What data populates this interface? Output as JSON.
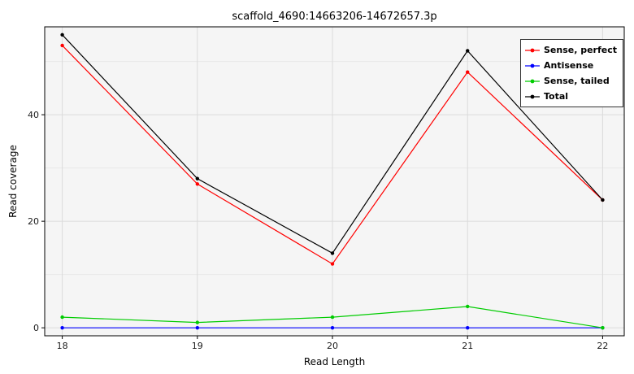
{
  "chart_data": {
    "type": "line",
    "title": "scaffold_4690:14663206-14672657.3p",
    "xlabel": "Read Length",
    "ylabel": "Read coverage",
    "x": [
      18,
      19,
      20,
      21,
      22
    ],
    "series": [
      {
        "name": "Sense, perfect",
        "color": "#FF0000",
        "values": [
          53,
          27,
          12,
          48,
          24
        ]
      },
      {
        "name": "Antisense",
        "color": "#0000FF",
        "values": [
          0,
          0,
          0,
          0,
          0
        ]
      },
      {
        "name": "Sense, tailed",
        "color": "#00CC00",
        "values": [
          2,
          1,
          2,
          4,
          0
        ]
      },
      {
        "name": "Total",
        "color": "#000000",
        "values": [
          55,
          28,
          14,
          52,
          24
        ]
      }
    ],
    "x_ticks": [
      18,
      19,
      20,
      21,
      22
    ],
    "y_ticks": [
      0,
      20,
      40
    ],
    "y_minor_ticks": [
      10,
      30,
      50
    ],
    "xlim": [
      17.87,
      22.16
    ],
    "ylim": [
      -1.5,
      56.5
    ],
    "grid": true,
    "legend_position": "top-right",
    "styles": {
      "panel_background": "#F5F5F5",
      "major_grid_color": "#DBDBDB",
      "minor_grid_color": "#E9E9E9",
      "panel_border_color": "#000000",
      "tick_color": "#000000",
      "tick_label_color": "#1a1a1a"
    }
  }
}
